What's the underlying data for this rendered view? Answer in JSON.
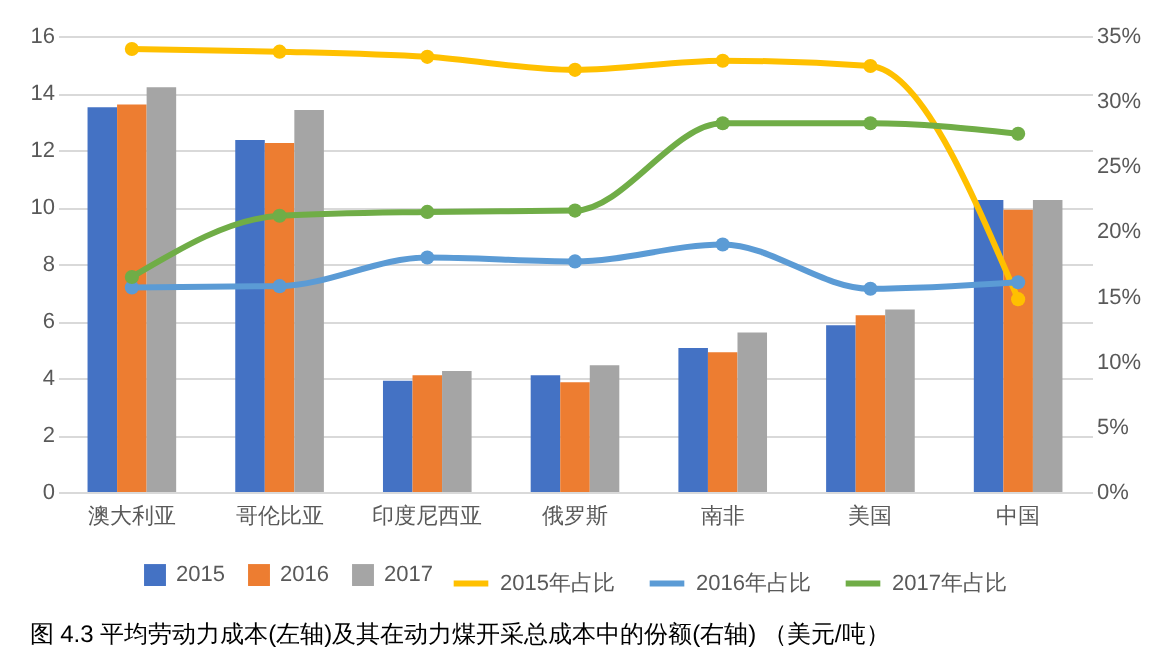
{
  "chart_data": {
    "type": "bar",
    "title": "图 4.3 平均劳动力成本(左轴)及其在动力煤开采总成本中的份额(右轴) （美元/吨）",
    "categories": [
      "澳大利亚",
      "哥伦比亚",
      "印度尼西亚",
      "俄罗斯",
      "南非",
      "美国",
      "中国"
    ],
    "series": [
      {
        "name": "2015",
        "color": "#4472c4",
        "values": [
          13.5,
          12.35,
          3.9,
          4.1,
          5.05,
          5.85,
          10.25
        ]
      },
      {
        "name": "2016",
        "color": "#ed7d31",
        "values": [
          13.6,
          12.25,
          4.1,
          3.85,
          4.9,
          6.2,
          9.9
        ]
      },
      {
        "name": "2017",
        "color": "#a5a5a5",
        "values": [
          14.2,
          13.4,
          4.25,
          4.45,
          5.6,
          6.4,
          10.25
        ]
      },
      {
        "name": "2015年占比",
        "type": "line",
        "axis": "y2",
        "color": "#ffc000",
        "values": [
          34.0,
          33.8,
          33.4,
          32.4,
          33.1,
          32.7,
          14.8
        ]
      },
      {
        "name": "2016年占比",
        "type": "line",
        "axis": "y2",
        "color": "#5b9bd5",
        "values": [
          15.7,
          15.8,
          18.0,
          17.7,
          19.0,
          15.6,
          16.1
        ]
      },
      {
        "name": "2017年占比",
        "type": "line",
        "axis": "y2",
        "color": "#70ad47",
        "values": [
          16.5,
          21.2,
          21.5,
          21.6,
          28.3,
          28.3,
          27.5
        ]
      }
    ],
    "ylim": [
      0,
      16
    ],
    "yticks": [
      0,
      2,
      4,
      6,
      8,
      10,
      12,
      14,
      16
    ],
    "y2lim": [
      0,
      35
    ],
    "y2ticks": [
      {
        "value": 0,
        "label": "0%"
      },
      {
        "value": 5,
        "label": "5%"
      },
      {
        "value": 10,
        "label": "10%"
      },
      {
        "value": 15,
        "label": "15%"
      },
      {
        "value": 20,
        "label": "20%"
      },
      {
        "value": 25,
        "label": "25%"
      },
      {
        "value": 30,
        "label": "30%"
      },
      {
        "value": 35,
        "label": "35%"
      }
    ],
    "grid": "y",
    "legend": "bottom",
    "marker": "circle"
  }
}
